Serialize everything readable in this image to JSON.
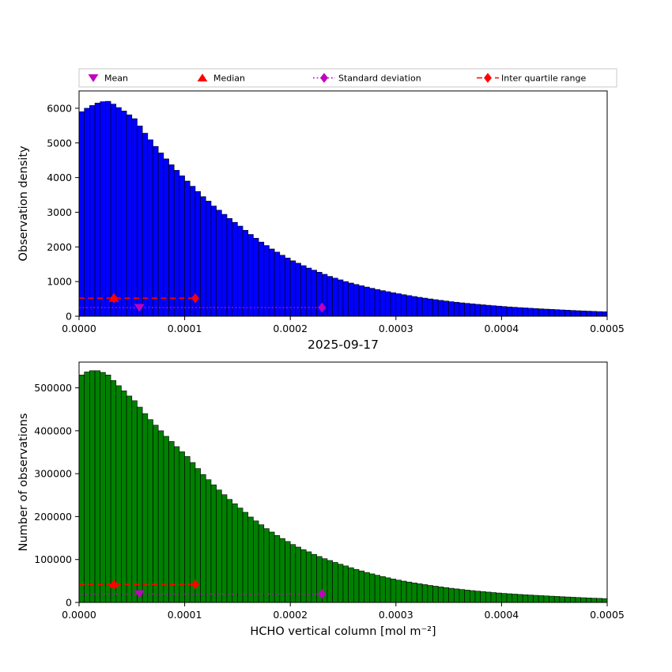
{
  "figure": {
    "background": "#ffffff"
  },
  "legend": {
    "border_color": "#c9c9c9",
    "items": [
      {
        "label": "Mean",
        "marker": "triangle-down",
        "color": "#bf00bf"
      },
      {
        "label": "Median",
        "marker": "triangle-up",
        "color": "#ff0000"
      },
      {
        "label": "Standard deviation",
        "marker": "diamond-on-line",
        "linestyle": "dotted",
        "color": "#bf00bf"
      },
      {
        "label": "Inter quartile range",
        "marker": "diamond-on-line",
        "linestyle": "dashed",
        "color": "#ff0000"
      }
    ]
  },
  "chart_data": [
    {
      "type": "bar",
      "subtype": "histogram",
      "ylabel": "Observation density",
      "xlabel": "2025-09-17",
      "bar_color": "#0000ff",
      "edge_color": "#000000",
      "xlim": [
        0,
        0.0005
      ],
      "ylim": [
        0,
        6500
      ],
      "bin_width": 5e-06,
      "xtick_values": [
        0,
        0.0001,
        0.0002,
        0.0003,
        0.0004,
        0.0005
      ],
      "xtick_labels": [
        "0.0000",
        "0.0001",
        "0.0002",
        "0.0003",
        "0.0004",
        "0.0005"
      ],
      "ytick_values": [
        0,
        1000,
        2000,
        3000,
        4000,
        5000,
        6000
      ],
      "ytick_labels": [
        "0",
        "1000",
        "2000",
        "3000",
        "4000",
        "5000",
        "6000"
      ],
      "values": [
        5900,
        6000,
        6080,
        6150,
        6190,
        6200,
        6120,
        6020,
        5920,
        5810,
        5700,
        5490,
        5280,
        5090,
        4900,
        4710,
        4540,
        4370,
        4210,
        4050,
        3900,
        3750,
        3600,
        3450,
        3320,
        3180,
        3060,
        2940,
        2820,
        2710,
        2600,
        2480,
        2360,
        2250,
        2140,
        2040,
        1940,
        1850,
        1760,
        1680,
        1600,
        1530,
        1460,
        1390,
        1330,
        1270,
        1210,
        1150,
        1100,
        1050,
        1000,
        958,
        917,
        879,
        842,
        806,
        772,
        739,
        708,
        678,
        650,
        622,
        596,
        570,
        546,
        523,
        500,
        479,
        458,
        439,
        420,
        403,
        387,
        372,
        357,
        343,
        330,
        317,
        304,
        292,
        280,
        269,
        259,
        249,
        240,
        231,
        222,
        213,
        205,
        198,
        190,
        182,
        175,
        167,
        160,
        154,
        147,
        141,
        135,
        130
      ],
      "stats_overlay": {
        "mean": {
          "x": 5.7e-05,
          "y": 250,
          "color": "#bf00bf"
        },
        "median": {
          "x": 3.3e-05,
          "y": 520,
          "color": "#ff0000"
        },
        "std": {
          "x0": 0,
          "x1": 0.00023,
          "y": 250,
          "color": "#bf00bf",
          "linestyle": "dotted",
          "markers": [
            0.00023
          ]
        },
        "iqr": {
          "x0": 0,
          "x1": 0.00011,
          "y": 520,
          "color": "#ff0000",
          "linestyle": "dashed",
          "markers": [
            3.3e-05,
            0.00011
          ]
        }
      }
    },
    {
      "type": "bar",
      "subtype": "histogram",
      "ylabel": "Number of observations",
      "xlabel": "HCHO vertical column [mol m⁻²]",
      "bar_color": "#008000",
      "edge_color": "#000000",
      "xlim": [
        0,
        0.0005
      ],
      "ylim": [
        0,
        560000
      ],
      "bin_width": 5e-06,
      "xtick_values": [
        0,
        0.0001,
        0.0002,
        0.0003,
        0.0004,
        0.0005
      ],
      "xtick_labels": [
        "0.0000",
        "0.0001",
        "0.0002",
        "0.0003",
        "0.0004",
        "0.0005"
      ],
      "ytick_values": [
        0,
        100000,
        200000,
        300000,
        400000,
        500000
      ],
      "ytick_labels": [
        "0",
        "100000",
        "200000",
        "300000",
        "400000",
        "500000"
      ],
      "values": [
        530000,
        537000,
        540000,
        540000,
        536000,
        530000,
        517000,
        505000,
        493000,
        481000,
        470000,
        455000,
        440000,
        426000,
        413000,
        400000,
        387000,
        375000,
        363000,
        351000,
        340000,
        326000,
        312000,
        298000,
        286000,
        274000,
        262000,
        251000,
        240000,
        230000,
        220000,
        210000,
        199000,
        190000,
        181000,
        172000,
        164000,
        156000,
        149000,
        142000,
        135000,
        129000,
        123000,
        118000,
        112000,
        107000,
        102000,
        97700,
        93200,
        89000,
        85000,
        80900,
        77000,
        73400,
        69800,
        66500,
        63300,
        60300,
        57400,
        54600,
        52000,
        49700,
        47500,
        45400,
        43400,
        41500,
        39600,
        37900,
        36200,
        34600,
        33000,
        31500,
        30200,
        28800,
        27600,
        26300,
        25200,
        24100,
        23000,
        22000,
        21000,
        20200,
        19400,
        18600,
        17900,
        17200,
        16500,
        15800,
        15200,
        14600,
        14000,
        13300,
        12700,
        12100,
        11500,
        11000,
        10400,
        9900,
        9500,
        9000
      ],
      "stats_overlay": {
        "mean": {
          "x": 5.7e-05,
          "y": 20000,
          "color": "#bf00bf"
        },
        "median": {
          "x": 3.3e-05,
          "y": 42000,
          "color": "#ff0000"
        },
        "std": {
          "x0": 0,
          "x1": 0.00023,
          "y": 20000,
          "color": "#bf00bf",
          "linestyle": "dotted",
          "markers": [
            0.00023
          ]
        },
        "iqr": {
          "x0": 0,
          "x1": 0.00011,
          "y": 42000,
          "color": "#ff0000",
          "linestyle": "dashed",
          "markers": [
            3.3e-05,
            0.00011
          ]
        }
      }
    }
  ]
}
